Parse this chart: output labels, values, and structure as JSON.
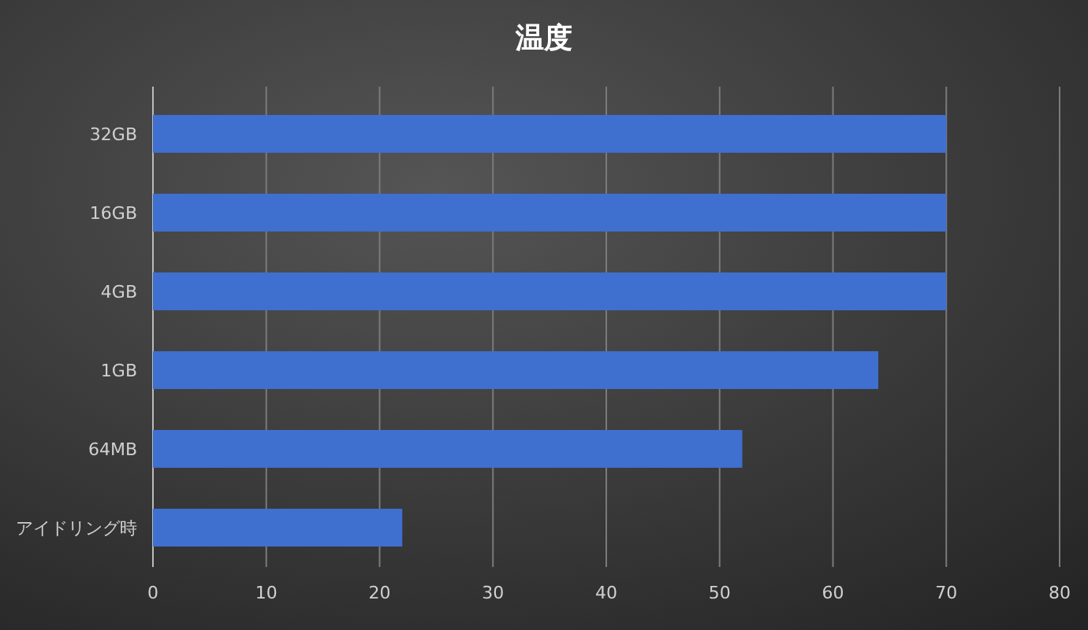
{
  "chart_data": {
    "type": "bar",
    "title": "温度",
    "orientation": "horizontal",
    "categories": [
      "32GB",
      "16GB",
      "4GB",
      "1GB",
      "64MB",
      "アイドリング時"
    ],
    "values": [
      70,
      70,
      70,
      64,
      52,
      22
    ],
    "color": "#3f6fcf",
    "xlim": [
      0,
      80
    ],
    "xticks": [
      0,
      10,
      20,
      30,
      40,
      50,
      60,
      70,
      80
    ],
    "grid": "x"
  }
}
